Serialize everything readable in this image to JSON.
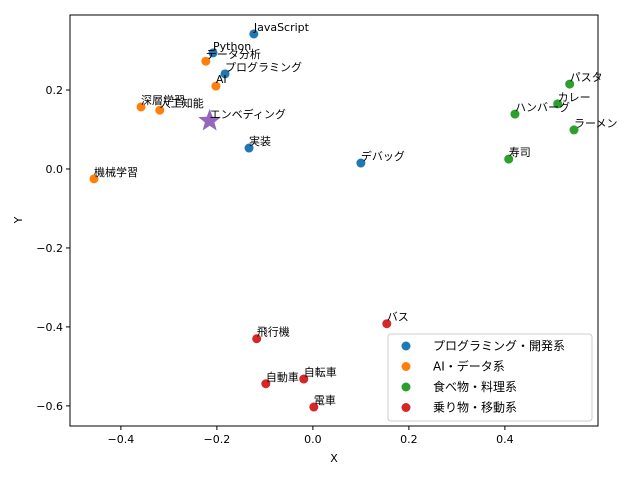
{
  "chart_data": {
    "type": "scatter",
    "xlabel": "X",
    "ylabel": "Y",
    "xlim": [
      -0.506,
      0.594
    ],
    "ylim": [
      -0.651,
      0.39
    ],
    "xticks": [
      {
        "value": -0.4,
        "label": "−0.4"
      },
      {
        "value": -0.2,
        "label": "−0.2"
      },
      {
        "value": 0,
        "label": "0.0"
      },
      0.2,
      0.4
    ],
    "yticks": [
      {
        "value": -0.6,
        "label": "−0.6"
      },
      {
        "value": -0.4,
        "label": "−0.4"
      },
      {
        "value": -0.2,
        "label": "−0.2"
      },
      {
        "value": 0,
        "label": "0.0"
      },
      0.2
    ],
    "legend": "lower right",
    "series": [
      {
        "name": "プログラミング・開発系",
        "color": "#1f77b4",
        "labels": [
          "JavaScript",
          "Python",
          "プログラミング",
          "実装",
          "デバッグ"
        ],
        "x": [
          -0.123,
          -0.208,
          -0.183,
          -0.133,
          0.1
        ],
        "y": [
          0.342,
          0.294,
          0.241,
          0.053,
          0.015
        ]
      },
      {
        "name": "AI・データ系",
        "color": "#ff7f0e",
        "labels": [
          "データ分析",
          "AI",
          "深層学習",
          "人工知能",
          "機械学習"
        ],
        "x": [
          -0.223,
          -0.202,
          -0.358,
          -0.319,
          -0.456
        ],
        "y": [
          0.273,
          0.21,
          0.157,
          0.149,
          -0.025
        ]
      },
      {
        "name": "食べ物・料理系",
        "color": "#2ca02c",
        "labels": [
          "パスタ",
          "カレー",
          "ハンバーグ",
          "ラーメン",
          "寿司"
        ],
        "x": [
          0.535,
          0.51,
          0.421,
          0.544,
          0.408
        ],
        "y": [
          0.215,
          0.165,
          0.139,
          0.099,
          0.025
        ]
      },
      {
        "name": "乗り物・移動系",
        "color": "#d62728",
        "labels": [
          "バス",
          "飛行機",
          "自転車",
          "自動車",
          "電車"
        ],
        "x": [
          0.154,
          -0.117,
          -0.019,
          -0.098,
          0.002
        ],
        "y": [
          -0.392,
          -0.43,
          -0.532,
          -0.544,
          -0.603
        ]
      }
    ],
    "highlight": {
      "label": "エンベディング",
      "x": -0.215,
      "y": 0.122,
      "color": "#9467bd",
      "marker": "star"
    }
  }
}
